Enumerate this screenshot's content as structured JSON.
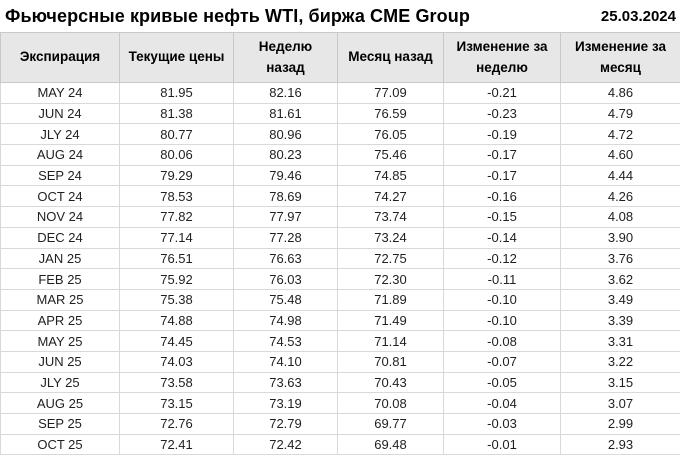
{
  "header": {
    "title": "Фьючерсные кривые нефть WTI, биржа CME Group",
    "date": "25.03.2024"
  },
  "colors": {
    "negative": "#cc1414",
    "positive": "#1e8a1e",
    "header_bg": "#e7e7e7",
    "grid_border": "#d9d9d9",
    "header_border": "#c9c9c9",
    "text": "#1f1f1f"
  },
  "chart_data": {
    "type": "table",
    "title": "Фьючерсные кривые нефть WTI, биржа CME Group",
    "date_label": "25.03.2024",
    "columns": [
      "Экспирация",
      "Текущие цены",
      "Неделю назад",
      "Месяц назад",
      "Изменение за неделю",
      "Изменение за месяц"
    ],
    "rows": [
      {
        "expiration": "MAY 24",
        "current": 81.95,
        "week_ago": 82.16,
        "month_ago": 77.09,
        "week_change": -0.21,
        "month_change": 4.86
      },
      {
        "expiration": "JUN 24",
        "current": 81.38,
        "week_ago": 81.61,
        "month_ago": 76.59,
        "week_change": -0.23,
        "month_change": 4.79
      },
      {
        "expiration": "JLY 24",
        "current": 80.77,
        "week_ago": 80.96,
        "month_ago": 76.05,
        "week_change": -0.19,
        "month_change": 4.72
      },
      {
        "expiration": "AUG 24",
        "current": 80.06,
        "week_ago": 80.23,
        "month_ago": 75.46,
        "week_change": -0.17,
        "month_change": 4.6
      },
      {
        "expiration": "SEP 24",
        "current": 79.29,
        "week_ago": 79.46,
        "month_ago": 74.85,
        "week_change": -0.17,
        "month_change": 4.44
      },
      {
        "expiration": "OCT 24",
        "current": 78.53,
        "week_ago": 78.69,
        "month_ago": 74.27,
        "week_change": -0.16,
        "month_change": 4.26
      },
      {
        "expiration": "NOV 24",
        "current": 77.82,
        "week_ago": 77.97,
        "month_ago": 73.74,
        "week_change": -0.15,
        "month_change": 4.08
      },
      {
        "expiration": "DEC 24",
        "current": 77.14,
        "week_ago": 77.28,
        "month_ago": 73.24,
        "week_change": -0.14,
        "month_change": 3.9
      },
      {
        "expiration": "JAN 25",
        "current": 76.51,
        "week_ago": 76.63,
        "month_ago": 72.75,
        "week_change": -0.12,
        "month_change": 3.76
      },
      {
        "expiration": "FEB 25",
        "current": 75.92,
        "week_ago": 76.03,
        "month_ago": 72.3,
        "week_change": -0.11,
        "month_change": 3.62
      },
      {
        "expiration": "MAR 25",
        "current": 75.38,
        "week_ago": 75.48,
        "month_ago": 71.89,
        "week_change": -0.1,
        "month_change": 3.49
      },
      {
        "expiration": "APR 25",
        "current": 74.88,
        "week_ago": 74.98,
        "month_ago": 71.49,
        "week_change": -0.1,
        "month_change": 3.39
      },
      {
        "expiration": "MAY 25",
        "current": 74.45,
        "week_ago": 74.53,
        "month_ago": 71.14,
        "week_change": -0.08,
        "month_change": 3.31
      },
      {
        "expiration": "JUN 25",
        "current": 74.03,
        "week_ago": 74.1,
        "month_ago": 70.81,
        "week_change": -0.07,
        "month_change": 3.22
      },
      {
        "expiration": "JLY 25",
        "current": 73.58,
        "week_ago": 73.63,
        "month_ago": 70.43,
        "week_change": -0.05,
        "month_change": 3.15
      },
      {
        "expiration": "AUG 25",
        "current": 73.15,
        "week_ago": 73.19,
        "month_ago": 70.08,
        "week_change": -0.04,
        "month_change": 3.07
      },
      {
        "expiration": "SEP 25",
        "current": 72.76,
        "week_ago": 72.79,
        "month_ago": 69.77,
        "week_change": -0.03,
        "month_change": 2.99
      },
      {
        "expiration": "OCT 25",
        "current": 72.41,
        "week_ago": 72.42,
        "month_ago": 69.48,
        "week_change": -0.01,
        "month_change": 2.93
      }
    ]
  }
}
